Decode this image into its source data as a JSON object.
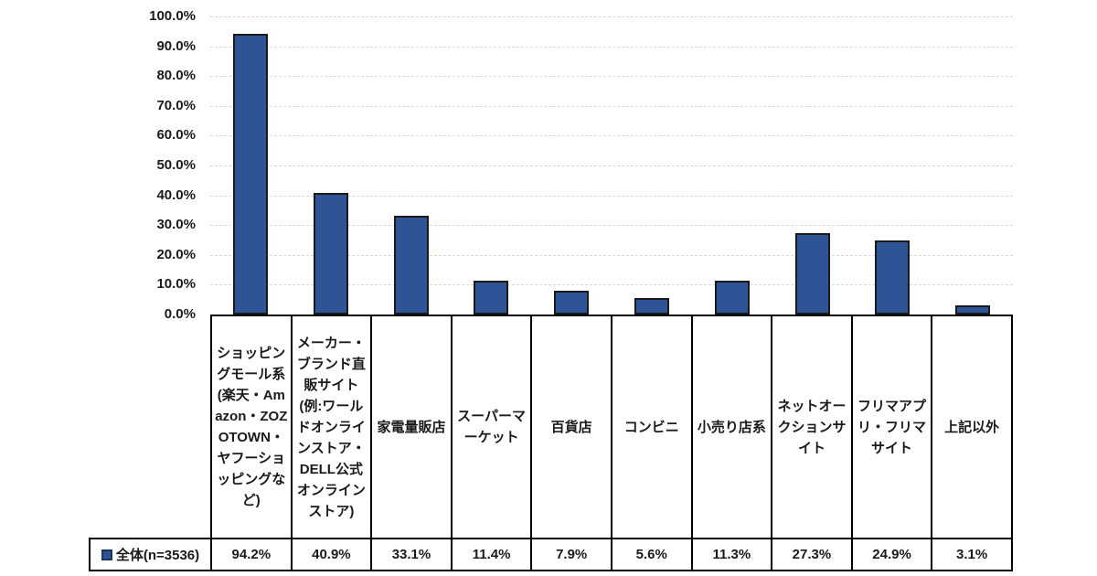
{
  "chart_data": {
    "type": "bar",
    "title": "",
    "xlabel": "",
    "ylabel": "",
    "categories": [
      "ショッピングモール系(楽天・Amazon・ZOZOTOWN・ヤフーショッピングなど)",
      "メーカー・ブランド直販サイト(例:ワールドオンラインストア・DELL公式オンラインストア)",
      "家電量販店",
      "スーパーマーケット",
      "百貨店",
      "コンビニ",
      "小売り店系",
      "ネットオークションサイト",
      "フリマアプリ・フリマサイト",
      "上記以外"
    ],
    "series": [
      {
        "name": "全体(n=3536)",
        "values": [
          94.2,
          40.9,
          33.1,
          11.4,
          7.9,
          5.6,
          11.3,
          27.3,
          24.9,
          3.1
        ]
      }
    ],
    "value_labels": [
      "94.2%",
      "40.9%",
      "33.1%",
      "11.4%",
      "7.9%",
      "5.6%",
      "11.3%",
      "27.3%",
      "24.9%",
      "3.1%"
    ],
    "ylim": [
      0,
      100
    ],
    "ytick_labels": [
      "0.0%",
      "10.0%",
      "20.0%",
      "30.0%",
      "40.0%",
      "50.0%",
      "60.0%",
      "70.0%",
      "80.0%",
      "90.0%",
      "100.0%"
    ],
    "grid": "horizontal-dashed",
    "legend_position": "bottom-left-table-row"
  },
  "legend": {
    "label": "全体(n=3536)"
  },
  "colors": {
    "bar_fill": "#2f5496",
    "bar_border": "#1a1a1a",
    "grid_line": "#dbd8cc",
    "table_border": "#000000",
    "legend_marker_fill": "#2f5496",
    "legend_marker_border": "#17375e",
    "text": "#1a1a1a",
    "background": "#ffffff"
  }
}
